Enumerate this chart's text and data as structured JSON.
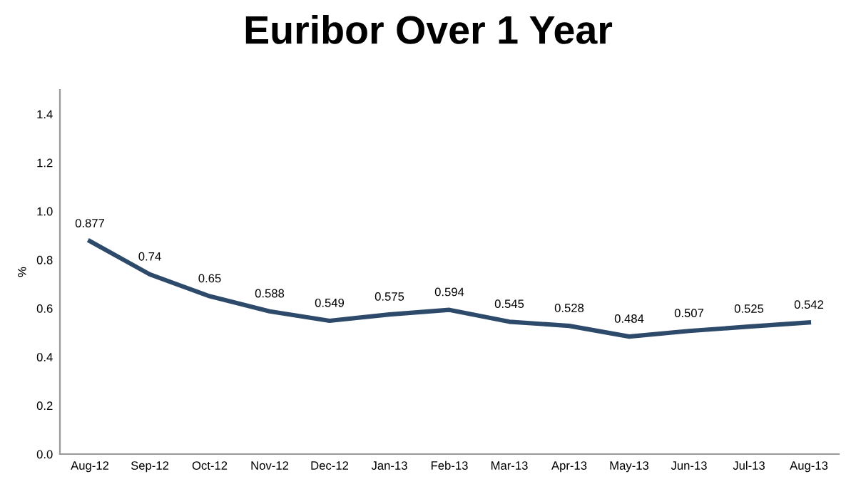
{
  "chart_data": {
    "type": "line",
    "title": "Euribor Over 1 Year",
    "ylabel": "%",
    "categories": [
      "Aug-12",
      "Sep-12",
      "Oct-12",
      "Nov-12",
      "Dec-12",
      "Jan-13",
      "Feb-13",
      "Mar-13",
      "Apr-13",
      "May-13",
      "Jun-13",
      "Jul-13",
      "Aug-13"
    ],
    "series": [
      {
        "color": "#2e4a6b",
        "values": [
          0.877,
          0.74,
          0.65,
          0.588,
          0.549,
          0.575,
          0.594,
          0.545,
          0.528,
          0.484,
          0.507,
          0.525,
          0.542
        ]
      }
    ],
    "data_labels": true,
    "ylim": [
      0,
      1.5
    ],
    "yticks": [
      {
        "value": 0,
        "label": "0.0"
      },
      {
        "value": 0.2,
        "label": "0.2"
      },
      {
        "value": 0.4,
        "label": "0.4"
      },
      {
        "value": 0.6,
        "label": "0.6"
      },
      {
        "value": 0.8,
        "label": "0.8"
      },
      {
        "value": 1.0,
        "label": "1.0"
      },
      {
        "value": 1.2,
        "label": "1.2"
      },
      {
        "value": 1.4,
        "label": "1.4"
      }
    ],
    "grid": false,
    "legend": false,
    "marker": "none",
    "line_style": "solid"
  }
}
